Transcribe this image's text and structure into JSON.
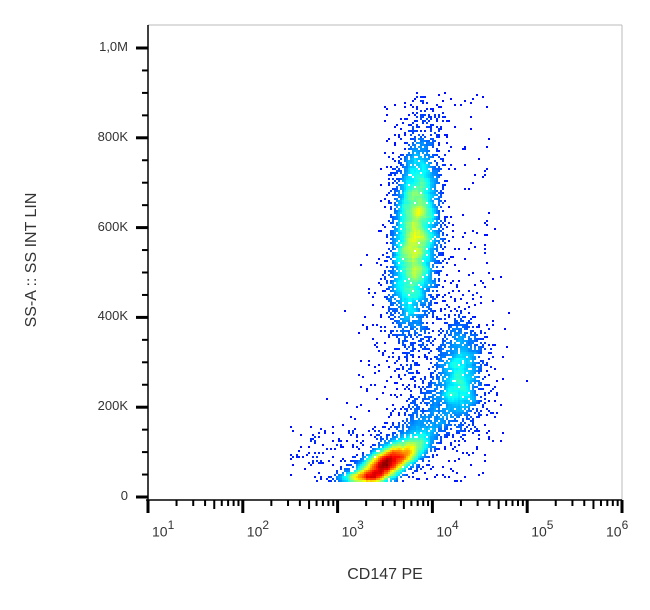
{
  "chart_data": {
    "type": "scatter",
    "subtype": "flow-cytometry density dot plot",
    "xlabel": "CD147 PE",
    "ylabel": "SS-A :: SS INT LIN",
    "x_scale": "log",
    "xlim": [
      10,
      1000000
    ],
    "ylim": [
      0,
      1050000
    ],
    "x_ticks": [
      {
        "base": "10",
        "exp": "1"
      },
      {
        "base": "10",
        "exp": "2"
      },
      {
        "base": "10",
        "exp": "3"
      },
      {
        "base": "10",
        "exp": "4"
      },
      {
        "base": "10",
        "exp": "5"
      },
      {
        "base": "10",
        "exp": "6"
      }
    ],
    "y_ticks": [
      {
        "value": 0,
        "label": "0"
      },
      {
        "value": 200000,
        "label": "200K"
      },
      {
        "value": 400000,
        "label": "400K"
      },
      {
        "value": 600000,
        "label": "600K"
      },
      {
        "value": 800000,
        "label": "800K"
      },
      {
        "value": 1000000,
        "label": "1,0M"
      }
    ],
    "grid": false,
    "legend": "none",
    "colormap": "jet (blue = low density, red = high density)",
    "populations": [
      {
        "x_center": 6600,
        "x_log_sd": 0.12,
        "y_center": 580000,
        "y_sd": 110000,
        "events": 5200
      },
      {
        "x_center": 3300,
        "x_log_sd": 0.2,
        "y_center": 75000,
        "y_sd": 25000,
        "events": 3600
      },
      {
        "x_center": 19500,
        "x_log_sd": 0.13,
        "y_center": 275000,
        "y_sd": 60000,
        "events": 1300
      }
    ],
    "y_max_event": 900000
  }
}
